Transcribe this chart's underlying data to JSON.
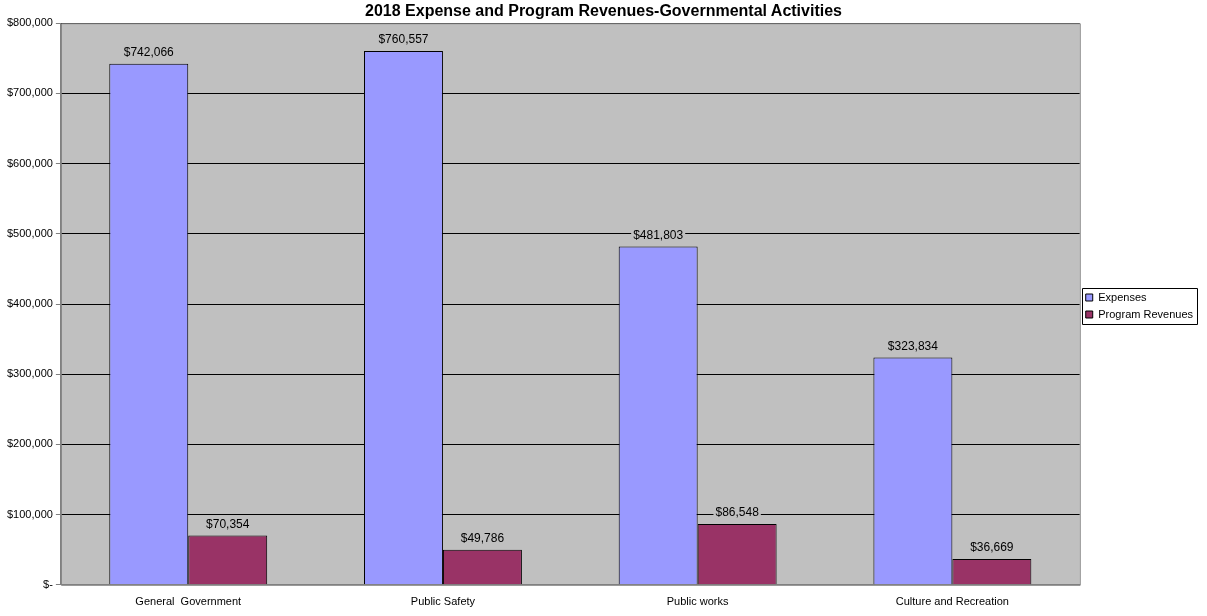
{
  "chart_data": {
    "type": "bar",
    "title": "2018 Expense and Program Revenues-Governmental Activities",
    "categories": [
      "General  Government",
      "Public Safety",
      "Public works",
      "Culture and Recreation"
    ],
    "series": [
      {
        "name": "Expenses",
        "color": "#9999ff",
        "values": [
          742066,
          760557,
          481803,
          323834
        ],
        "value_labels": [
          "$742,066",
          "$760,557",
          "$481,803",
          "$323,834"
        ]
      },
      {
        "name": "Program Revenues",
        "color": "#993366",
        "values": [
          70354,
          49786,
          86548,
          36669
        ],
        "value_labels": [
          "$70,354",
          "$49,786",
          "$86,548",
          "$36,669"
        ]
      }
    ],
    "ylim": [
      0,
      800000
    ],
    "yticks": [
      {
        "value": 0,
        "label": "$-"
      },
      {
        "value": 100000,
        "label": "$100,000"
      },
      {
        "value": 200000,
        "label": "$200,000"
      },
      {
        "value": 300000,
        "label": "$300,000"
      },
      {
        "value": 400000,
        "label": "$400,000"
      },
      {
        "value": 500000,
        "label": "$500,000"
      },
      {
        "value": 600000,
        "label": "$600,000"
      },
      {
        "value": 700000,
        "label": "$700,000"
      },
      {
        "value": 800000,
        "label": "$800,000"
      }
    ],
    "grid": "y",
    "legend": "right"
  }
}
